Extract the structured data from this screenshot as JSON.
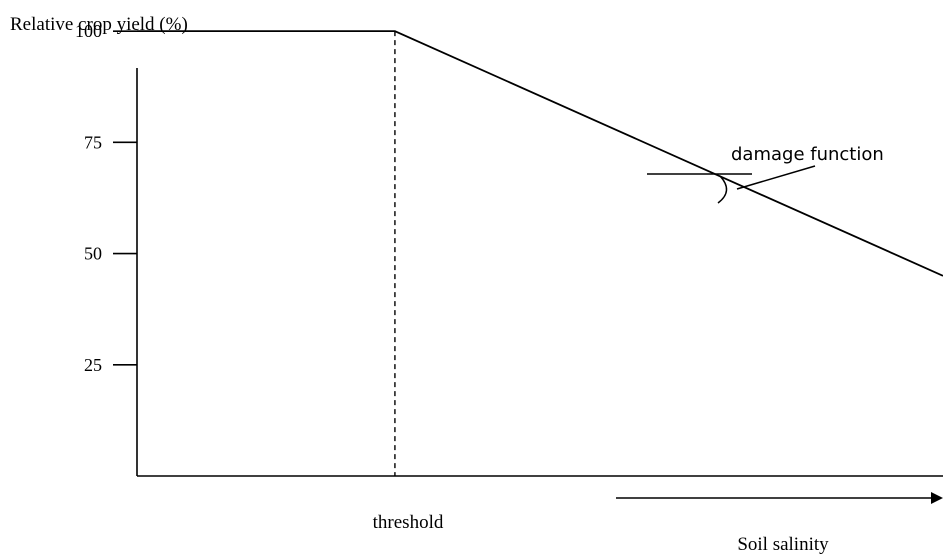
{
  "chart_data": {
    "type": "line",
    "ylabel": "Relative crop yield (%)",
    "xlabel": "Soil salinity",
    "yticks": [
      100,
      75,
      50,
      25
    ],
    "ylim": [
      0,
      107
    ],
    "series": [
      {
        "x": [
          0,
          32,
          100
        ],
        "y": [
          100,
          100,
          45
        ]
      }
    ],
    "annotations": {
      "threshold": "threshold",
      "damage_function": "damage function"
    },
    "grid": false
  }
}
